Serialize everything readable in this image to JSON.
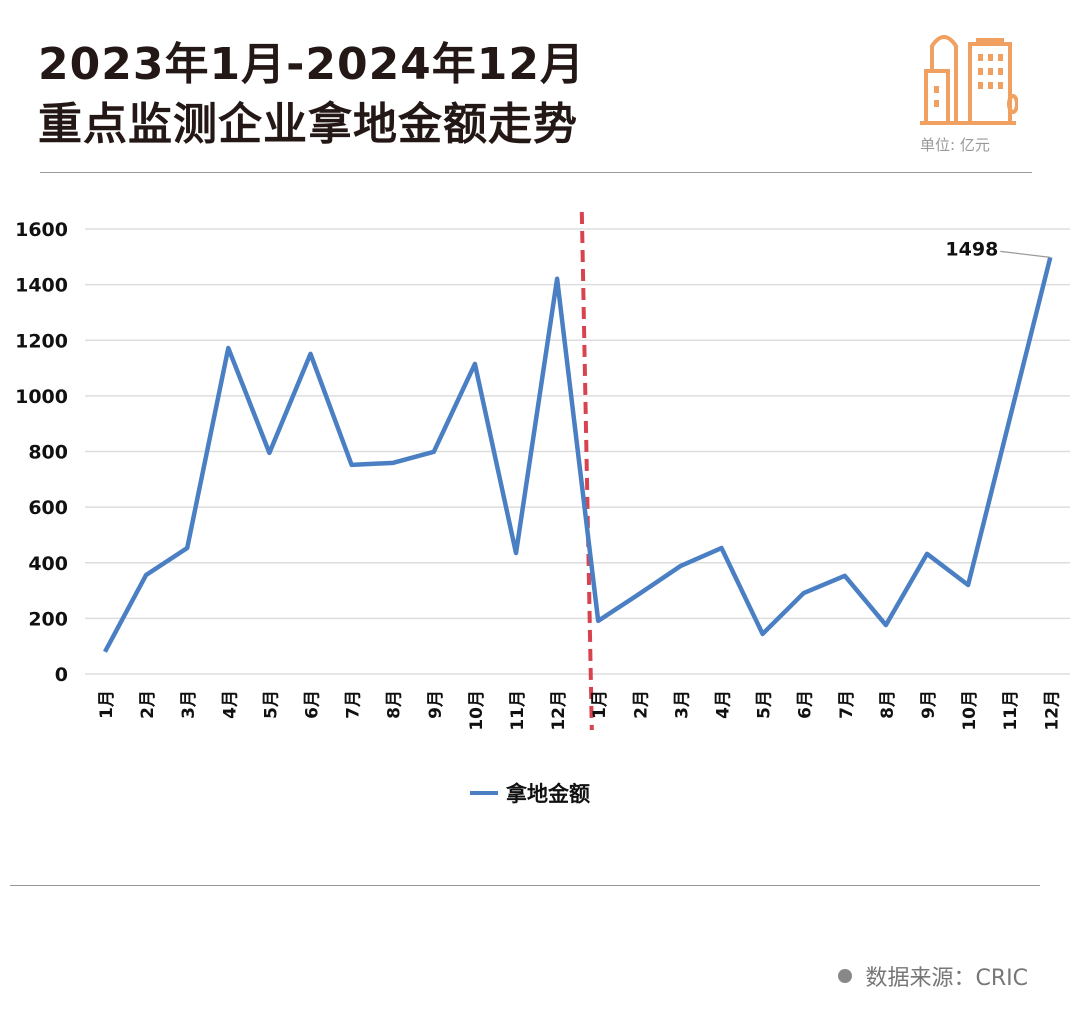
{
  "header": {
    "title_line1": "2023年1月-2024年12月",
    "title_line2": "重点监测企业拿地金额走势",
    "unit": "单位: 亿元",
    "icon": "buildings-icon"
  },
  "source": "数据来源：CRIC",
  "colors": {
    "line": "#4a7fc4",
    "divider": "#d9434f",
    "icon": "#f0a060"
  },
  "chart_data": {
    "type": "line",
    "title": "重点监测企业拿地金额走势",
    "xlabel": "",
    "ylabel": "亿元",
    "categories": [
      "1月",
      "2月",
      "3月",
      "4月",
      "5月",
      "6月",
      "7月",
      "8月",
      "9月",
      "10月",
      "11月",
      "12月",
      "1月",
      "2月",
      "3月",
      "4月",
      "5月",
      "6月",
      "7月",
      "8月",
      "9月",
      "10月",
      "11月",
      "12月"
    ],
    "series": [
      {
        "name": "拿地金额",
        "values": [
          80,
          356,
          453,
          1172,
          795,
          1151,
          752,
          759,
          799,
          1115,
          435,
          1421,
          191,
          288,
          388,
          453,
          144,
          291,
          353,
          176,
          432,
          320,
          910,
          1498
        ]
      }
    ],
    "annotations": [
      {
        "index": 23,
        "text": "1498"
      }
    ],
    "divider_after_index": 11,
    "ylim": [
      0,
      1600
    ],
    "yticks": [
      0,
      200,
      400,
      600,
      800,
      1000,
      1200,
      1400,
      1600
    ],
    "grid": true,
    "legend": "bottom"
  }
}
